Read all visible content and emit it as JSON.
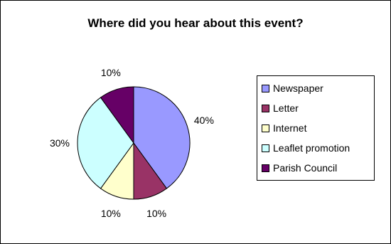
{
  "chart_data": {
    "type": "pie",
    "title": "Where did you hear about this event?",
    "categories": [
      "Newspaper",
      "Letter",
      "Internet",
      "Leaflet promotion",
      "Parish Council"
    ],
    "values": [
      40,
      10,
      10,
      30,
      10
    ],
    "data_labels": [
      "40%",
      "10%",
      "10%",
      "30%",
      "10%"
    ],
    "colors": [
      "#9999FF",
      "#993366",
      "#FFFFCC",
      "#CCFFFF",
      "#660066"
    ],
    "legend_position": "right"
  }
}
